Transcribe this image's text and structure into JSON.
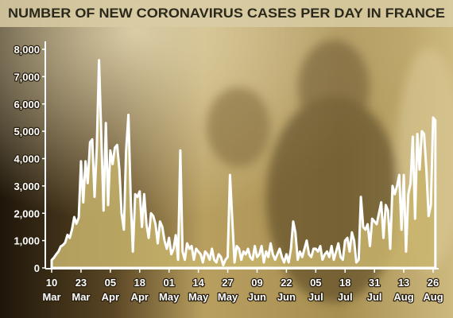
{
  "chart_data": {
    "type": "area",
    "title": "NUMBER OF NEW CORONAVIRUS CASES PER DAY IN FRANCE",
    "categories": [
      [
        "10",
        "Mar"
      ],
      null,
      null,
      null,
      null,
      null,
      null,
      null,
      null,
      null,
      null,
      null,
      null,
      [
        "23",
        "Mar"
      ],
      null,
      null,
      null,
      null,
      null,
      null,
      null,
      null,
      null,
      null,
      null,
      null,
      [
        "05",
        "Apr"
      ],
      null,
      null,
      null,
      null,
      null,
      null,
      null,
      null,
      null,
      null,
      null,
      null,
      [
        "18",
        "Apr"
      ],
      null,
      null,
      null,
      null,
      null,
      null,
      null,
      null,
      null,
      null,
      null,
      null,
      [
        "01",
        "May"
      ],
      null,
      null,
      null,
      null,
      null,
      null,
      null,
      null,
      null,
      null,
      null,
      null,
      [
        "14",
        "May"
      ],
      null,
      null,
      null,
      null,
      null,
      null,
      null,
      null,
      null,
      null,
      null,
      null,
      [
        "27",
        "May"
      ],
      null,
      null,
      null,
      null,
      null,
      null,
      null,
      null,
      null,
      null,
      null,
      null,
      [
        "09",
        "Jun"
      ],
      null,
      null,
      null,
      null,
      null,
      null,
      null,
      null,
      null,
      null,
      null,
      null,
      [
        "22",
        "Jun"
      ],
      null,
      null,
      null,
      null,
      null,
      null,
      null,
      null,
      null,
      null,
      null,
      null,
      [
        "05",
        "Jul"
      ],
      null,
      null,
      null,
      null,
      null,
      null,
      null,
      null,
      null,
      null,
      null,
      null,
      [
        "18",
        "Jul"
      ],
      null,
      null,
      null,
      null,
      null,
      null,
      null,
      null,
      null,
      null,
      null,
      null,
      [
        "31",
        "Jul"
      ],
      null,
      null,
      null,
      null,
      null,
      null,
      null,
      null,
      null,
      null,
      null,
      null,
      [
        "13",
        "Aug"
      ],
      null,
      null,
      null,
      null,
      null,
      null,
      null,
      null,
      null,
      null,
      null,
      null,
      [
        "26",
        "Aug"
      ],
      null
    ],
    "values": [
      286,
      372,
      497,
      595,
      785,
      838,
      924,
      1210,
      1097,
      1404,
      1861,
      1617,
      1847,
      3900,
      2400,
      3900,
      3100,
      4600,
      4700,
      2600,
      4400,
      7600,
      4800,
      2100,
      5300,
      2300,
      4300,
      3800,
      4400,
      4500,
      3600,
      2000,
      1400,
      4300,
      5600,
      2600,
      600,
      2700,
      2600,
      2800,
      1500,
      2700,
      1600,
      1100,
      2000,
      1900,
      1600,
      900,
      1700,
      1500,
      1000,
      700,
      1100,
      500,
      700,
      1200,
      300,
      4300,
      600,
      300,
      900,
      700,
      800,
      300,
      700,
      600,
      500,
      200,
      600,
      500,
      300,
      700,
      300,
      200,
      500,
      400,
      100,
      300,
      400,
      3400,
      1800,
      200,
      800,
      700,
      300,
      600,
      500,
      700,
      400,
      300,
      800,
      400,
      500,
      800,
      200,
      600,
      400,
      900,
      500,
      300,
      500,
      700,
      400,
      200,
      500,
      200,
      700,
      1700,
      1300,
      300,
      600,
      400,
      700,
      1000,
      500,
      400,
      700,
      700,
      600,
      800,
      300,
      500,
      600,
      400,
      800,
      300,
      600,
      900,
      400,
      300,
      1000,
      1100,
      600,
      1300,
      1000,
      200,
      300,
      2600,
      1500,
      1400,
      1600,
      800,
      1800,
      1700,
      1600,
      2000,
      2400,
      1100,
      2300,
      2100,
      700,
      3000,
      2700,
      3000,
      3400,
      1400,
      3400,
      600,
      2700,
      3100,
      4800,
      1800,
      4900,
      3600,
      5000,
      4900,
      3600,
      1900,
      2300,
      5500,
      5400
    ],
    "color": "#c8b46c",
    "ylim": [
      0,
      8000
    ],
    "yticks": [
      0,
      {
        "value": 1000,
        "label": "1,000"
      },
      {
        "value": 2000,
        "label": "2,000"
      },
      {
        "value": 3000,
        "label": "3,000"
      },
      {
        "value": 4000,
        "label": "4,000"
      },
      {
        "value": 5000,
        "label": "5,000"
      },
      {
        "value": 6000,
        "label": "6,000"
      },
      {
        "value": 7000,
        "label": "7,000"
      },
      {
        "value": 8000,
        "label": "8,000"
      }
    ]
  }
}
